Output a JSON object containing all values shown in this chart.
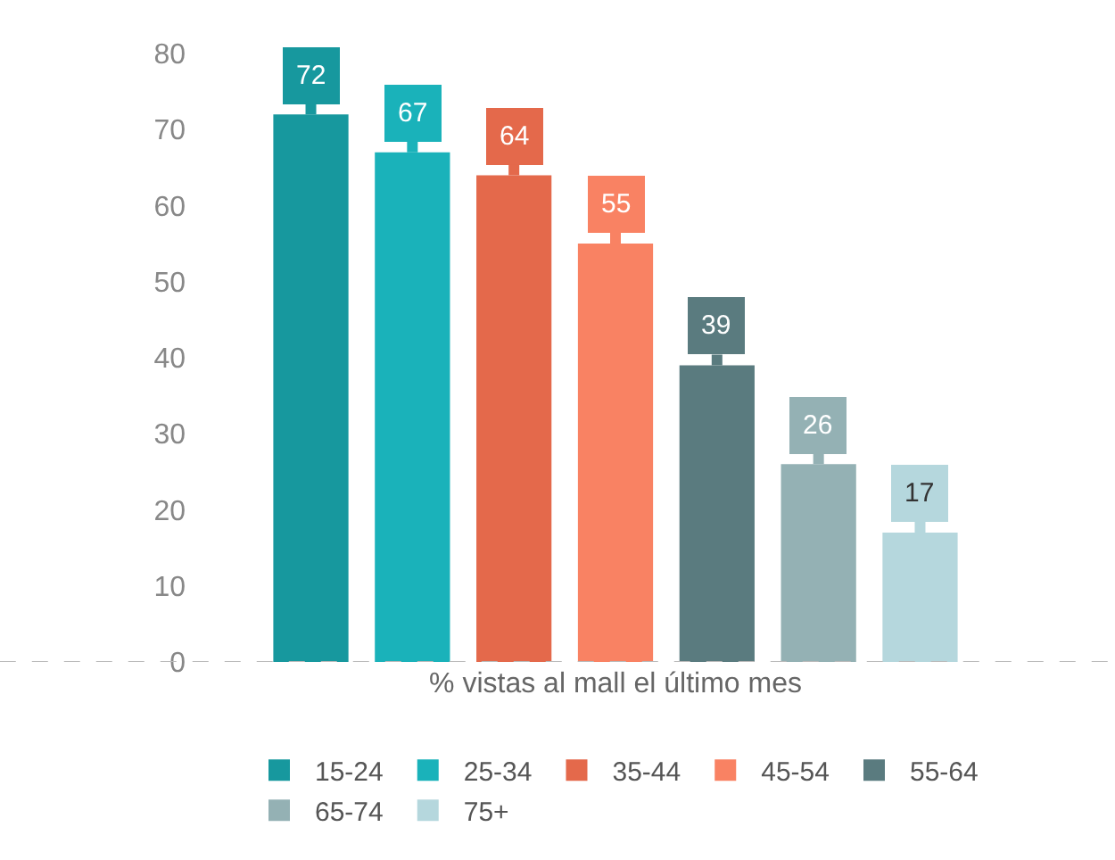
{
  "chart_data": {
    "type": "bar",
    "categories": [
      "% vistas al mall el último mes"
    ],
    "series": [
      {
        "name": "15-24",
        "color": "#17989e",
        "values": [
          72
        ]
      },
      {
        "name": "25-34",
        "color": "#1ab2ba",
        "values": [
          67
        ]
      },
      {
        "name": "35-44",
        "color": "#e4694b",
        "values": [
          64
        ]
      },
      {
        "name": "45-54",
        "color": "#f98263",
        "values": [
          55
        ]
      },
      {
        "name": "55-64",
        "color": "#5a7b7f",
        "values": [
          39
        ]
      },
      {
        "name": "65-74",
        "color": "#94b1b4",
        "values": [
          26
        ]
      },
      {
        "name": "75+",
        "color": "#b5d7dd",
        "values": [
          17
        ]
      }
    ],
    "ylim": [
      0,
      80
    ],
    "yticks": [
      0,
      10,
      20,
      30,
      40,
      50,
      60,
      70,
      80
    ],
    "legend": "bottom",
    "data_labels": true
  }
}
